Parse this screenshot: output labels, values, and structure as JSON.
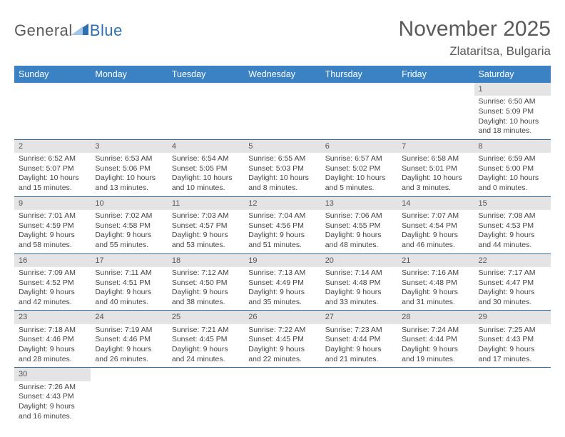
{
  "logo": {
    "brand1": "General",
    "brand2": "Blue"
  },
  "title": "November 2025",
  "location": "Zlataritsa, Bulgaria",
  "colors": {
    "header_bg": "#3b82c4",
    "header_text": "#ffffff",
    "daynum_bg": "#e4e4e4",
    "row_border": "#2f6fb0",
    "logo_gray": "#5a5a5a",
    "logo_blue": "#2f6fb0"
  },
  "day_headers": [
    "Sunday",
    "Monday",
    "Tuesday",
    "Wednesday",
    "Thursday",
    "Friday",
    "Saturday"
  ],
  "weeks": [
    [
      {
        "n": "",
        "sr": "",
        "ss": "",
        "dl": ""
      },
      {
        "n": "",
        "sr": "",
        "ss": "",
        "dl": ""
      },
      {
        "n": "",
        "sr": "",
        "ss": "",
        "dl": ""
      },
      {
        "n": "",
        "sr": "",
        "ss": "",
        "dl": ""
      },
      {
        "n": "",
        "sr": "",
        "ss": "",
        "dl": ""
      },
      {
        "n": "",
        "sr": "",
        "ss": "",
        "dl": ""
      },
      {
        "n": "1",
        "sr": "Sunrise: 6:50 AM",
        "ss": "Sunset: 5:09 PM",
        "dl": "Daylight: 10 hours and 18 minutes."
      }
    ],
    [
      {
        "n": "2",
        "sr": "Sunrise: 6:52 AM",
        "ss": "Sunset: 5:07 PM",
        "dl": "Daylight: 10 hours and 15 minutes."
      },
      {
        "n": "3",
        "sr": "Sunrise: 6:53 AM",
        "ss": "Sunset: 5:06 PM",
        "dl": "Daylight: 10 hours and 13 minutes."
      },
      {
        "n": "4",
        "sr": "Sunrise: 6:54 AM",
        "ss": "Sunset: 5:05 PM",
        "dl": "Daylight: 10 hours and 10 minutes."
      },
      {
        "n": "5",
        "sr": "Sunrise: 6:55 AM",
        "ss": "Sunset: 5:03 PM",
        "dl": "Daylight: 10 hours and 8 minutes."
      },
      {
        "n": "6",
        "sr": "Sunrise: 6:57 AM",
        "ss": "Sunset: 5:02 PM",
        "dl": "Daylight: 10 hours and 5 minutes."
      },
      {
        "n": "7",
        "sr": "Sunrise: 6:58 AM",
        "ss": "Sunset: 5:01 PM",
        "dl": "Daylight: 10 hours and 3 minutes."
      },
      {
        "n": "8",
        "sr": "Sunrise: 6:59 AM",
        "ss": "Sunset: 5:00 PM",
        "dl": "Daylight: 10 hours and 0 minutes."
      }
    ],
    [
      {
        "n": "9",
        "sr": "Sunrise: 7:01 AM",
        "ss": "Sunset: 4:59 PM",
        "dl": "Daylight: 9 hours and 58 minutes."
      },
      {
        "n": "10",
        "sr": "Sunrise: 7:02 AM",
        "ss": "Sunset: 4:58 PM",
        "dl": "Daylight: 9 hours and 55 minutes."
      },
      {
        "n": "11",
        "sr": "Sunrise: 7:03 AM",
        "ss": "Sunset: 4:57 PM",
        "dl": "Daylight: 9 hours and 53 minutes."
      },
      {
        "n": "12",
        "sr": "Sunrise: 7:04 AM",
        "ss": "Sunset: 4:56 PM",
        "dl": "Daylight: 9 hours and 51 minutes."
      },
      {
        "n": "13",
        "sr": "Sunrise: 7:06 AM",
        "ss": "Sunset: 4:55 PM",
        "dl": "Daylight: 9 hours and 48 minutes."
      },
      {
        "n": "14",
        "sr": "Sunrise: 7:07 AM",
        "ss": "Sunset: 4:54 PM",
        "dl": "Daylight: 9 hours and 46 minutes."
      },
      {
        "n": "15",
        "sr": "Sunrise: 7:08 AM",
        "ss": "Sunset: 4:53 PM",
        "dl": "Daylight: 9 hours and 44 minutes."
      }
    ],
    [
      {
        "n": "16",
        "sr": "Sunrise: 7:09 AM",
        "ss": "Sunset: 4:52 PM",
        "dl": "Daylight: 9 hours and 42 minutes."
      },
      {
        "n": "17",
        "sr": "Sunrise: 7:11 AM",
        "ss": "Sunset: 4:51 PM",
        "dl": "Daylight: 9 hours and 40 minutes."
      },
      {
        "n": "18",
        "sr": "Sunrise: 7:12 AM",
        "ss": "Sunset: 4:50 PM",
        "dl": "Daylight: 9 hours and 38 minutes."
      },
      {
        "n": "19",
        "sr": "Sunrise: 7:13 AM",
        "ss": "Sunset: 4:49 PM",
        "dl": "Daylight: 9 hours and 35 minutes."
      },
      {
        "n": "20",
        "sr": "Sunrise: 7:14 AM",
        "ss": "Sunset: 4:48 PM",
        "dl": "Daylight: 9 hours and 33 minutes."
      },
      {
        "n": "21",
        "sr": "Sunrise: 7:16 AM",
        "ss": "Sunset: 4:48 PM",
        "dl": "Daylight: 9 hours and 31 minutes."
      },
      {
        "n": "22",
        "sr": "Sunrise: 7:17 AM",
        "ss": "Sunset: 4:47 PM",
        "dl": "Daylight: 9 hours and 30 minutes."
      }
    ],
    [
      {
        "n": "23",
        "sr": "Sunrise: 7:18 AM",
        "ss": "Sunset: 4:46 PM",
        "dl": "Daylight: 9 hours and 28 minutes."
      },
      {
        "n": "24",
        "sr": "Sunrise: 7:19 AM",
        "ss": "Sunset: 4:46 PM",
        "dl": "Daylight: 9 hours and 26 minutes."
      },
      {
        "n": "25",
        "sr": "Sunrise: 7:21 AM",
        "ss": "Sunset: 4:45 PM",
        "dl": "Daylight: 9 hours and 24 minutes."
      },
      {
        "n": "26",
        "sr": "Sunrise: 7:22 AM",
        "ss": "Sunset: 4:45 PM",
        "dl": "Daylight: 9 hours and 22 minutes."
      },
      {
        "n": "27",
        "sr": "Sunrise: 7:23 AM",
        "ss": "Sunset: 4:44 PM",
        "dl": "Daylight: 9 hours and 21 minutes."
      },
      {
        "n": "28",
        "sr": "Sunrise: 7:24 AM",
        "ss": "Sunset: 4:44 PM",
        "dl": "Daylight: 9 hours and 19 minutes."
      },
      {
        "n": "29",
        "sr": "Sunrise: 7:25 AM",
        "ss": "Sunset: 4:43 PM",
        "dl": "Daylight: 9 hours and 17 minutes."
      }
    ],
    [
      {
        "n": "30",
        "sr": "Sunrise: 7:26 AM",
        "ss": "Sunset: 4:43 PM",
        "dl": "Daylight: 9 hours and 16 minutes."
      },
      {
        "n": "",
        "sr": "",
        "ss": "",
        "dl": ""
      },
      {
        "n": "",
        "sr": "",
        "ss": "",
        "dl": ""
      },
      {
        "n": "",
        "sr": "",
        "ss": "",
        "dl": ""
      },
      {
        "n": "",
        "sr": "",
        "ss": "",
        "dl": ""
      },
      {
        "n": "",
        "sr": "",
        "ss": "",
        "dl": ""
      },
      {
        "n": "",
        "sr": "",
        "ss": "",
        "dl": ""
      }
    ]
  ]
}
